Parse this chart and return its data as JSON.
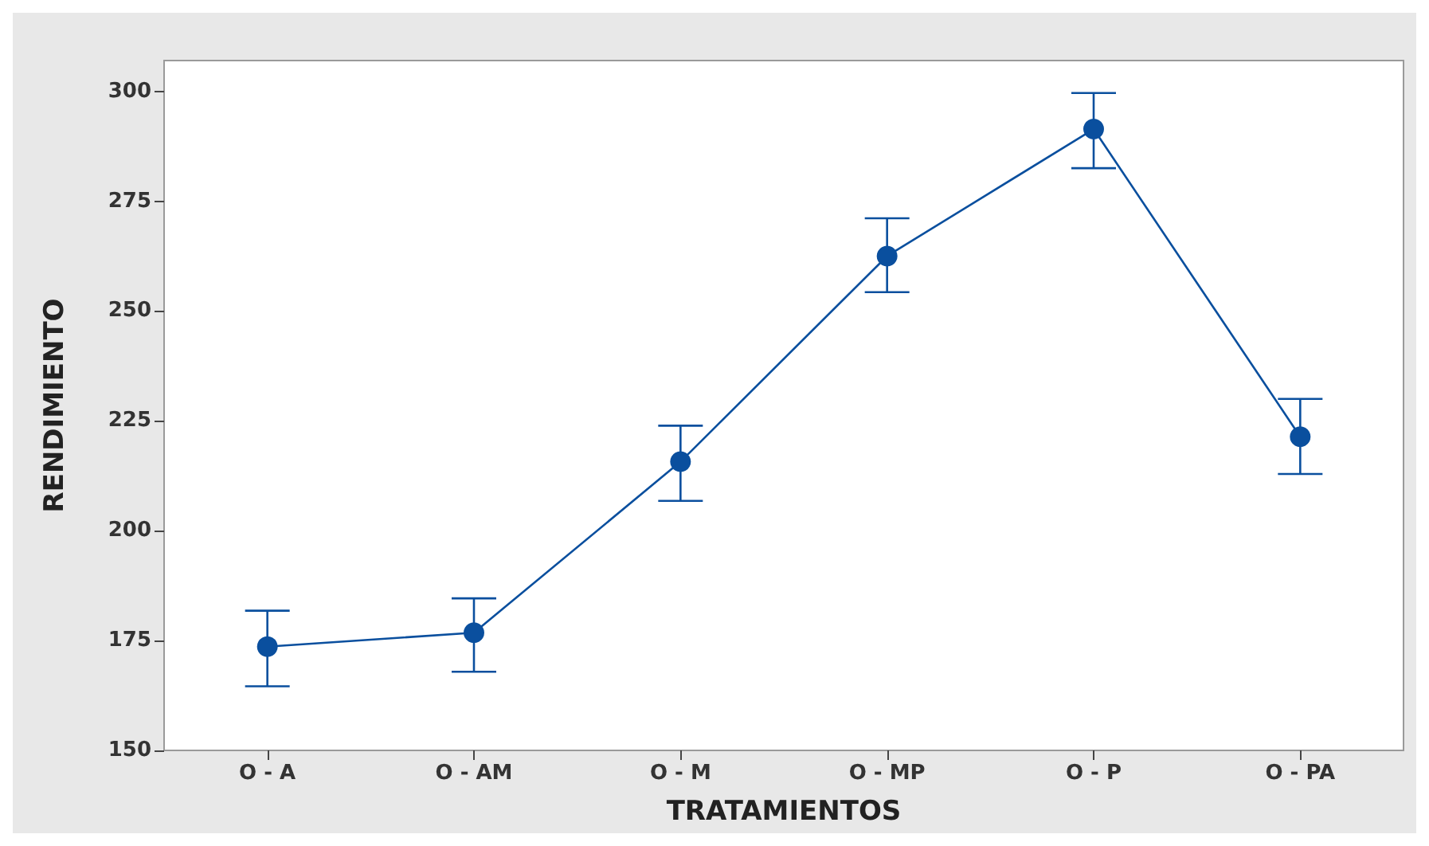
{
  "chart_data": {
    "type": "line",
    "xlabel": "TRATAMIENTOS",
    "ylabel": "RENDIMIENTO",
    "categories": [
      "O - A",
      "O - AM",
      "O - M",
      "O - MP",
      "O - P",
      "O - PA"
    ],
    "series": [
      {
        "color": "#0a4f9e",
        "values": [
          173.6,
          176.8,
          215.7,
          262.5,
          291.4,
          221.4
        ],
        "errors": [
          [
            164.6,
            181.8
          ],
          [
            167.9,
            184.6
          ],
          [
            206.8,
            223.9
          ],
          [
            254.3,
            271.1
          ],
          [
            282.5,
            299.6
          ],
          [
            212.9,
            230.0
          ]
        ]
      }
    ],
    "ylim": [
      150,
      307
    ],
    "yticks": [
      150,
      175,
      200,
      225,
      250,
      275,
      300
    ],
    "marker": "circle",
    "line_style": "solid"
  }
}
